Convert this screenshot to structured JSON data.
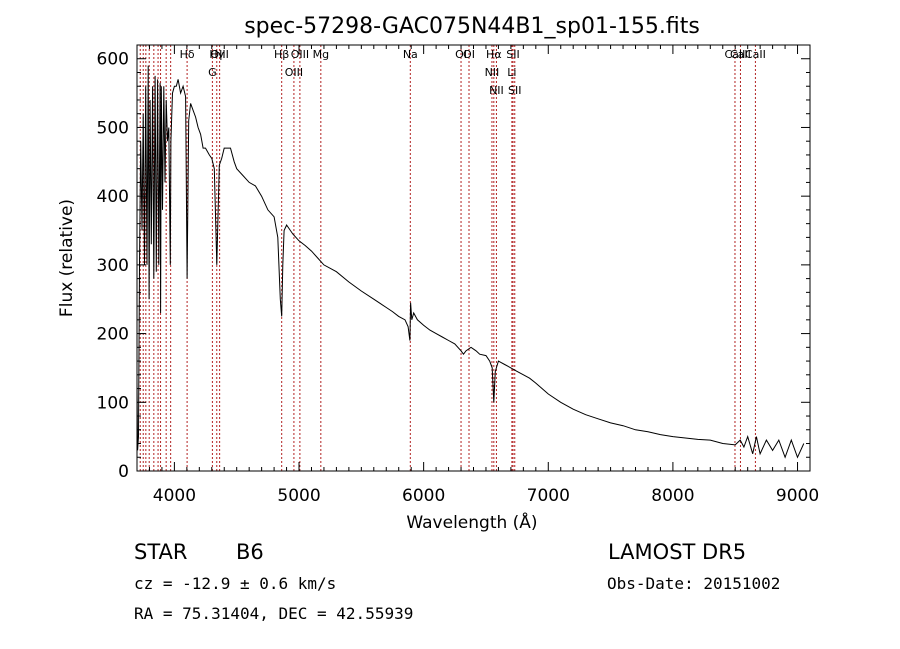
{
  "chart_data": {
    "type": "line",
    "title": "spec-57298-GAC075N44B1_sp01-155.fits",
    "xlabel": "Wavelength (Å)",
    "ylabel": "Flux (relative)",
    "xlim": [
      3700,
      9100
    ],
    "ylim": [
      0,
      620
    ],
    "xticks": [
      4000,
      5000,
      6000,
      7000,
      8000,
      9000
    ],
    "yticks": [
      0,
      100,
      200,
      300,
      400,
      500,
      600
    ],
    "grid": false,
    "line_color": "#000000",
    "marker_color": "#b22222",
    "series": [
      {
        "x": [
          3700,
          3705,
          3712,
          3720,
          3730,
          3740,
          3750,
          3760,
          3770,
          3780,
          3790,
          3797,
          3805,
          3815,
          3825,
          3835,
          3845,
          3855,
          3865,
          3875,
          3885,
          3889,
          3895,
          3905,
          3915,
          3925,
          3934,
          3945,
          3955,
          3960,
          3967,
          3972,
          3985,
          4000,
          4015,
          4030,
          4050,
          4070,
          4090,
          4102,
          4115,
          4130,
          4150,
          4170,
          4190,
          4210,
          4230,
          4250,
          4280,
          4300,
          4320,
          4340,
          4360,
          4380,
          4400,
          4450,
          4480,
          4500,
          4550,
          4600,
          4650,
          4700,
          4750,
          4800,
          4830,
          4850,
          4861,
          4870,
          4880,
          4900,
          4950,
          5000,
          5050,
          5100,
          5150,
          5200,
          5300,
          5400,
          5500,
          5600,
          5700,
          5750,
          5800,
          5850,
          5875,
          5890,
          5895,
          5905,
          5920,
          5950,
          6000,
          6050,
          6100,
          6150,
          6200,
          6250,
          6300,
          6320,
          6340,
          6380,
          6420,
          6450,
          6500,
          6530,
          6550,
          6563,
          6575,
          6600,
          6650,
          6700,
          6750,
          6800,
          6850,
          6900,
          6950,
          7000,
          7100,
          7200,
          7300,
          7400,
          7500,
          7600,
          7700,
          7800,
          7900,
          8000,
          8100,
          8200,
          8300,
          8400,
          8500,
          8540,
          8570,
          8600,
          8640,
          8670,
          8700,
          8750,
          8800,
          8850,
          8900,
          8950,
          9000,
          9050
        ],
        "y": [
          130,
          30,
          50,
          300,
          480,
          350,
          520,
          300,
          560,
          300,
          590,
          250,
          540,
          330,
          560,
          280,
          575,
          290,
          570,
          300,
          565,
          230,
          560,
          380,
          560,
          420,
          540,
          480,
          500,
          420,
          300,
          480,
          550,
          560,
          560,
          570,
          550,
          560,
          545,
          280,
          510,
          535,
          525,
          515,
          500,
          490,
          470,
          470,
          460,
          455,
          440,
          300,
          445,
          455,
          470,
          470,
          450,
          440,
          430,
          420,
          415,
          400,
          380,
          370,
          340,
          250,
          225,
          300,
          350,
          358,
          345,
          335,
          328,
          320,
          310,
          300,
          290,
          275,
          262,
          250,
          238,
          232,
          225,
          220,
          210,
          190,
          245,
          220,
          230,
          220,
          212,
          205,
          200,
          195,
          190,
          185,
          175,
          170,
          175,
          180,
          175,
          170,
          168,
          160,
          150,
          100,
          145,
          160,
          155,
          150,
          145,
          140,
          135,
          128,
          120,
          112,
          100,
          90,
          82,
          76,
          70,
          66,
          60,
          57,
          53,
          50,
          48,
          46,
          45,
          40,
          38,
          45,
          35,
          50,
          25,
          50,
          25,
          45,
          30,
          45,
          20,
          45,
          20,
          40
        ]
      }
    ],
    "lines": [
      {
        "label": "Hδ",
        "x": 4102
      },
      {
        "label": "OIII",
        "x": 4363
      },
      {
        "label": "Hγ",
        "x": 4340
      },
      {
        "label": "G",
        "x": 4305
      },
      {
        "label": "Hβ",
        "x": 4861
      },
      {
        "label": "OIII",
        "x": 5007
      },
      {
        "label": "OIII",
        "x": 4959
      },
      {
        "label": "Mg",
        "x": 5175
      },
      {
        "label": "Na",
        "x": 5893
      },
      {
        "label": "OI",
        "x": 6300
      },
      {
        "label": "OI",
        "x": 6364
      },
      {
        "label": "Hα",
        "x": 6563
      },
      {
        "label": "NII",
        "x": 6548
      },
      {
        "label": "NII",
        "x": 6584
      },
      {
        "label": "SII",
        "x": 6717
      },
      {
        "label": "Li",
        "x": 6708
      },
      {
        "label": "SII",
        "x": 6731
      },
      {
        "label": "CaII",
        "x": 8542
      },
      {
        "label": "CaII",
        "x": 8498
      },
      {
        "label": "CaII",
        "x": 8662
      }
    ],
    "crowded_lines": [
      3726,
      3750,
      3771,
      3798,
      3835,
      3869,
      3889,
      3934,
      3970
    ]
  },
  "info": {
    "object_class": "STAR",
    "subclass": "B6",
    "survey": "LAMOST DR5",
    "cz": "cz = -12.9 ± 0.6 km/s",
    "obs_date": "Obs-Date: 20151002",
    "coords": "RA =  75.31404, DEC =  42.55939"
  }
}
